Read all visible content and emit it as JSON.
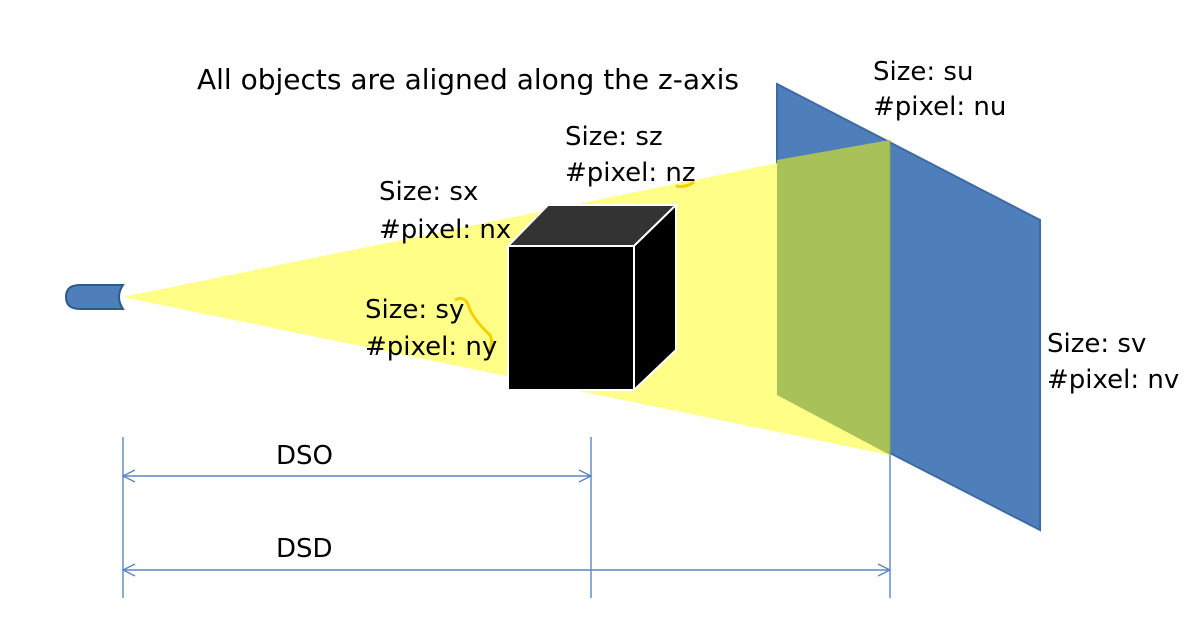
{
  "title": "All objects are aligned along the z-axis",
  "detector": {
    "size_u": "Size: su",
    "pixel_u": "#pixel: nu",
    "size_v": "Size: sv",
    "pixel_v": "#pixel: nv",
    "color": "#4f7fba"
  },
  "object": {
    "size_x": "Size: sx",
    "pixel_x": "#pixel: nx",
    "size_y": "Size: sy",
    "pixel_y": "#pixel: ny",
    "size_z": "Size: sz",
    "pixel_z": "#pixel: nz"
  },
  "distances": {
    "dso": "DSO",
    "dsd": "DSD"
  },
  "colors": {
    "beam": "#ffff88",
    "overlap": "#a9c159",
    "cube_front": "#000000",
    "cube_top": "#333333",
    "dimension_lines": "#5b86c4",
    "source": "#4f7fba"
  }
}
